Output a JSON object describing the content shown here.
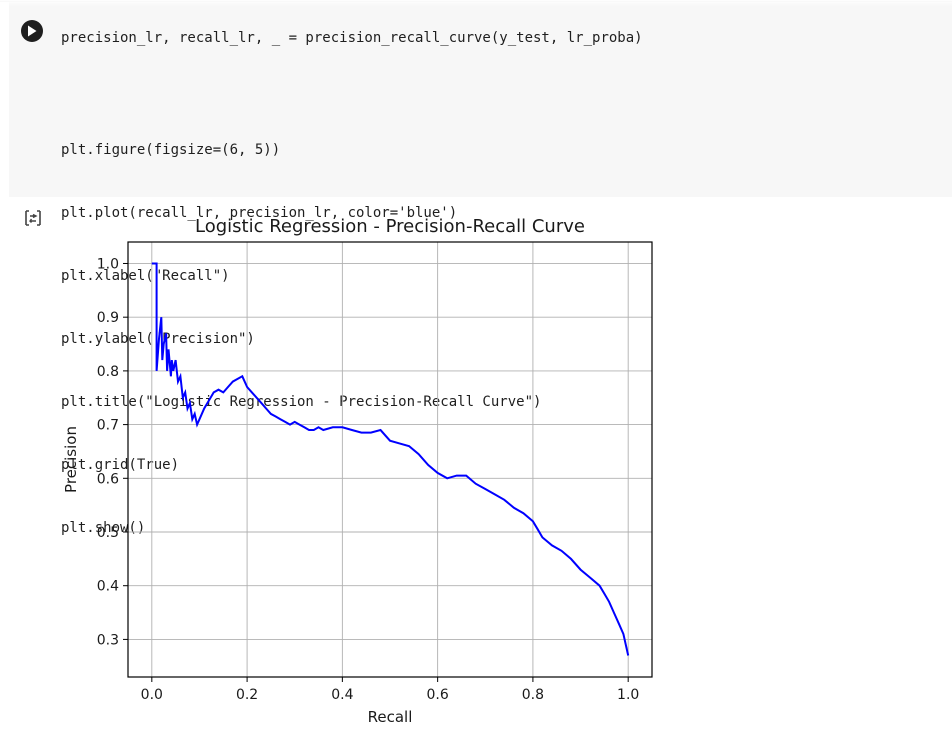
{
  "cell": {
    "clipped_line": "precision_lr, recall_lr, _ = precision_recall_curve(y_test, lr_proba)",
    "lines": [
      "plt.figure(figsize=(6, 5))",
      "plt.plot(recall_lr, precision_lr, color='blue')",
      "plt.xlabel(\"Recall\")",
      "plt.ylabel(\"Precision\")",
      "plt.title(\"Logistic Regression - Precision-Recall Curve\")",
      "plt.grid(True)",
      "plt.show()"
    ],
    "run_icon": "play-circle-icon",
    "output_icon": "output-toggle-icon"
  },
  "colors": {
    "line": "#0000ff",
    "grid": "#b0b0b0",
    "code_bg": "#f7f7f7"
  },
  "chart_data": {
    "type": "line",
    "title": "Logistic Regression - Precision-Recall Curve",
    "xlabel": "Recall",
    "ylabel": "Precision",
    "xlim": [
      -0.05,
      1.05
    ],
    "ylim": [
      0.23,
      1.04
    ],
    "xticks": [
      "0.0",
      "0.2",
      "0.4",
      "0.6",
      "0.8",
      "1.0"
    ],
    "yticks": [
      "0.3",
      "0.4",
      "0.5",
      "0.6",
      "0.7",
      "0.8",
      "0.9",
      "1.0"
    ],
    "grid": true,
    "series": [
      {
        "color": "#0000ff",
        "x": [
          0.0,
          0.01,
          0.01,
          0.01,
          0.015,
          0.02,
          0.022,
          0.025,
          0.03,
          0.032,
          0.035,
          0.04,
          0.042,
          0.045,
          0.05,
          0.055,
          0.06,
          0.065,
          0.07,
          0.075,
          0.08,
          0.085,
          0.09,
          0.095,
          0.1,
          0.11,
          0.12,
          0.13,
          0.14,
          0.15,
          0.16,
          0.17,
          0.18,
          0.19,
          0.2,
          0.21,
          0.22,
          0.23,
          0.24,
          0.25,
          0.26,
          0.27,
          0.28,
          0.29,
          0.3,
          0.31,
          0.32,
          0.33,
          0.34,
          0.35,
          0.36,
          0.38,
          0.4,
          0.42,
          0.44,
          0.46,
          0.48,
          0.5,
          0.52,
          0.54,
          0.56,
          0.58,
          0.6,
          0.62,
          0.64,
          0.66,
          0.68,
          0.7,
          0.72,
          0.74,
          0.76,
          0.78,
          0.8,
          0.81,
          0.82,
          0.84,
          0.86,
          0.88,
          0.9,
          0.92,
          0.94,
          0.95,
          0.96,
          0.97,
          0.98,
          0.99,
          0.995,
          1.0
        ],
        "y": [
          1.0,
          1.0,
          0.95,
          0.8,
          0.86,
          0.9,
          0.82,
          0.85,
          0.87,
          0.8,
          0.84,
          0.79,
          0.82,
          0.8,
          0.82,
          0.78,
          0.79,
          0.75,
          0.76,
          0.73,
          0.74,
          0.71,
          0.72,
          0.7,
          0.71,
          0.73,
          0.745,
          0.76,
          0.765,
          0.76,
          0.77,
          0.78,
          0.785,
          0.79,
          0.77,
          0.76,
          0.75,
          0.74,
          0.73,
          0.72,
          0.715,
          0.71,
          0.705,
          0.7,
          0.705,
          0.7,
          0.695,
          0.69,
          0.69,
          0.695,
          0.69,
          0.695,
          0.695,
          0.69,
          0.685,
          0.685,
          0.69,
          0.67,
          0.665,
          0.66,
          0.645,
          0.625,
          0.61,
          0.6,
          0.605,
          0.605,
          0.59,
          0.58,
          0.57,
          0.56,
          0.545,
          0.535,
          0.52,
          0.505,
          0.49,
          0.475,
          0.465,
          0.45,
          0.43,
          0.415,
          0.4,
          0.385,
          0.37,
          0.35,
          0.33,
          0.31,
          0.29,
          0.27
        ]
      }
    ]
  }
}
